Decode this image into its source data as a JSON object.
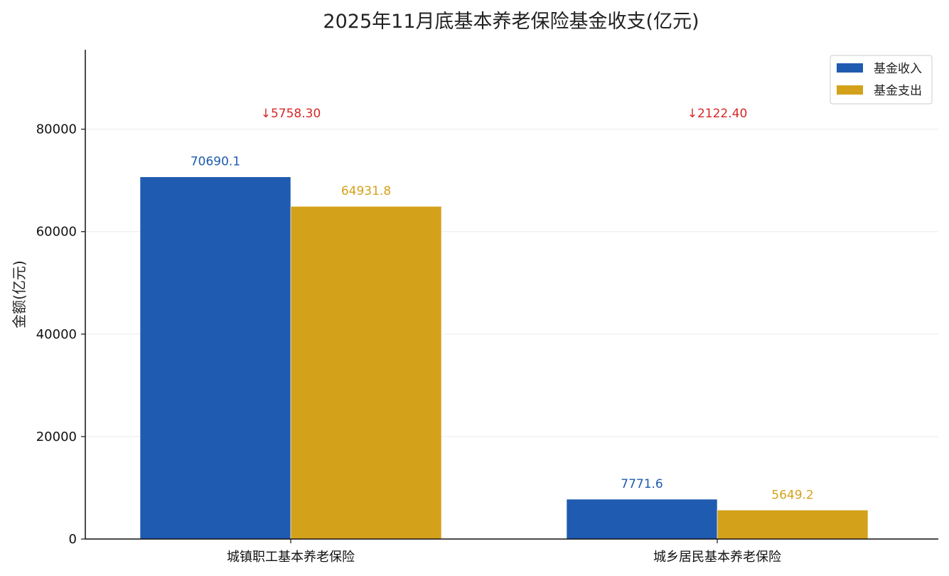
{
  "chart_data": {
    "type": "bar",
    "title": "2025年11月底基本养老保险基金收支(亿元)",
    "xlabel": "",
    "ylabel": "金额(亿元)",
    "categories": [
      "城镇职工基本养老保险",
      "城乡居民基本养老保险"
    ],
    "series": [
      {
        "name": "基金收入",
        "color": "#1f5bb0",
        "values": [
          70690.1,
          7771.6
        ],
        "labels": [
          "70690.1",
          "7771.6"
        ]
      },
      {
        "name": "基金支出",
        "color": "#d4a11b",
        "values": [
          64931.8,
          5649.2
        ],
        "labels": [
          "64931.8",
          "5649.2"
        ]
      }
    ],
    "annotations": [
      {
        "category": "城镇职工基本养老保险",
        "text": "↓5758.30",
        "color": "#d62728"
      },
      {
        "category": "城乡居民基本养老保险",
        "text": "↓2122.40",
        "color": "#d62728"
      }
    ],
    "ylim": [
      0,
      95500
    ],
    "yticks": [
      0,
      20000,
      40000,
      60000,
      80000
    ],
    "ytick_labels": [
      "0",
      "20000",
      "40000",
      "60000",
      "80000"
    ],
    "grid": true,
    "legend_position": "top-right"
  }
}
